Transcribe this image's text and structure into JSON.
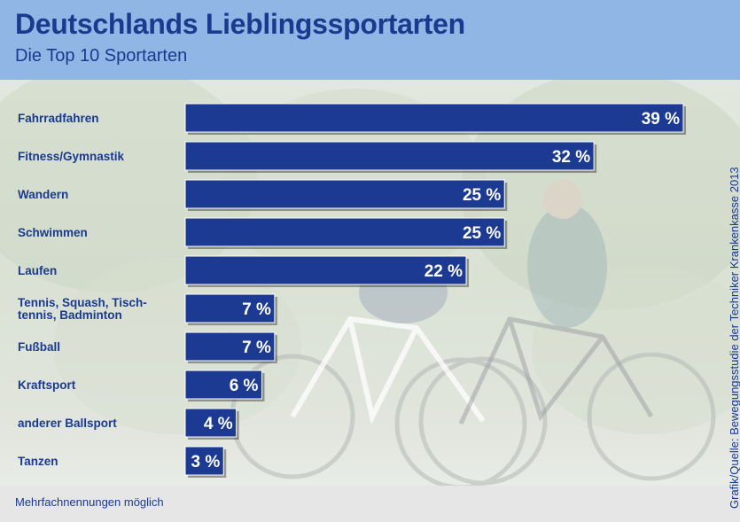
{
  "header": {
    "title": "Deutschlands Lieblingssportarten",
    "subtitle": "Die Top 10 Sportarten"
  },
  "footnote": "Mehrfachnennungen möglich",
  "source": "Grafik/Quelle: Bewegungsstudie der Techniker Krankenkasse 2013",
  "colors": {
    "header_band": "#8fb6e4",
    "bar_fill": "#1c3a92",
    "text": "#1a3a8f"
  },
  "chart_data": {
    "type": "bar",
    "orientation": "horizontal",
    "title": "Deutschlands Lieblingssportarten",
    "subtitle": "Die Top 10 Sportarten",
    "categories": [
      "Fahrradfahren",
      "Fitness/Gymnastik",
      "Wandern",
      "Schwimmen",
      "Laufen",
      "Tennis, Squash, Tisch-\ntennis, Badminton",
      "Fußball",
      "Kraftsport",
      "anderer Ballsport",
      "Tanzen"
    ],
    "values": [
      39,
      32,
      25,
      25,
      22,
      7,
      7,
      6,
      4,
      3
    ],
    "value_labels": [
      "39 %",
      "32 %",
      "25 %",
      "25 %",
      "22 %",
      "7 %",
      "7 %",
      "6 %",
      "4 %",
      "3 %"
    ],
    "unit": "%",
    "xlim": [
      0,
      39
    ],
    "grid": false,
    "legend": "none",
    "note": "Mehrfachnennungen möglich"
  }
}
